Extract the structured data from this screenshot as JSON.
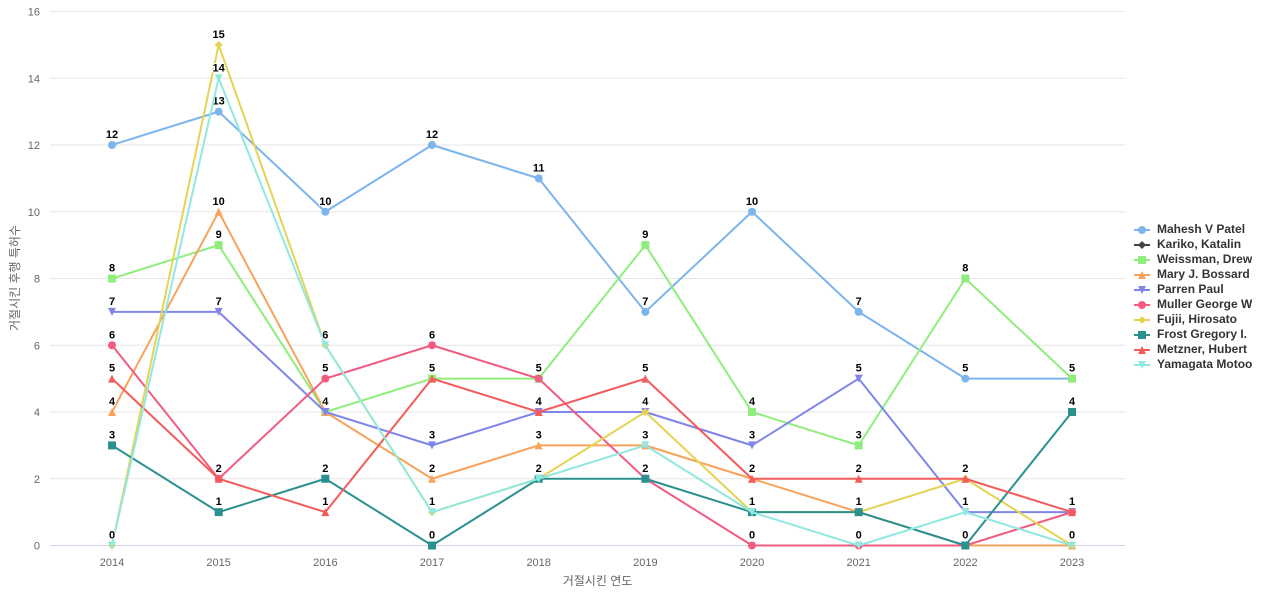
{
  "chart_data": {
    "type": "line",
    "categories": [
      "2014",
      "2015",
      "2016",
      "2017",
      "2018",
      "2019",
      "2020",
      "2021",
      "2022",
      "2023"
    ],
    "xlabel": "거절시킨 연도",
    "ylabel": "거절시킨 후행 특허수",
    "ylim": [
      0,
      16
    ],
    "yticks": [
      0,
      2,
      4,
      6,
      8,
      10,
      12,
      14,
      16
    ],
    "grid": true,
    "legend_position": "right",
    "series": [
      {
        "name": "Mahesh V Patel",
        "color": "#7cb5ec",
        "marker": "circle",
        "values": [
          12,
          13,
          10,
          12,
          11,
          7,
          10,
          7,
          5,
          5
        ]
      },
      {
        "name": "Kariko, Katalin",
        "color": "#434348",
        "marker": "diamond",
        "values": [
          null,
          null,
          null,
          null,
          null,
          null,
          null,
          null,
          null,
          null
        ]
      },
      {
        "name": "Weissman, Drew",
        "color": "#90ed7d",
        "marker": "square",
        "values": [
          8,
          9,
          4,
          5,
          5,
          9,
          4,
          3,
          8,
          5
        ]
      },
      {
        "name": "Mary J. Bossard",
        "color": "#f7a35c",
        "marker": "triangle",
        "values": [
          4,
          10,
          4,
          2,
          3,
          3,
          2,
          1,
          0,
          0
        ]
      },
      {
        "name": "Parren Paul",
        "color": "#8085e9",
        "marker": "triangle-down",
        "values": [
          7,
          7,
          4,
          3,
          4,
          4,
          3,
          5,
          1,
          1
        ]
      },
      {
        "name": "Muller George W",
        "color": "#f15c80",
        "marker": "circle",
        "values": [
          6,
          2,
          5,
          6,
          5,
          2,
          0,
          0,
          0,
          1
        ]
      },
      {
        "name": "Fujii, Hirosato",
        "color": "#e4d354",
        "marker": "diamond",
        "values": [
          0,
          15,
          6,
          1,
          2,
          4,
          1,
          1,
          2,
          0
        ]
      },
      {
        "name": "Frost Gregory I.",
        "color": "#2b908f",
        "marker": "square",
        "values": [
          3,
          1,
          2,
          0,
          2,
          2,
          1,
          1,
          0,
          4
        ]
      },
      {
        "name": "Metzner, Hubert",
        "color": "#f45b5b",
        "marker": "triangle",
        "values": [
          5,
          2,
          1,
          5,
          4,
          5,
          2,
          2,
          2,
          1
        ]
      },
      {
        "name": "Yamagata Motoo",
        "color": "#91e8e1",
        "marker": "triangle-down",
        "values": [
          0,
          14,
          6,
          1,
          2,
          3,
          1,
          0,
          1,
          0
        ]
      }
    ]
  },
  "style": {
    "grid_color": "#e6e6e6",
    "axis_line_color": "#ccd6eb",
    "tick_label_color": "#666666",
    "axis_title_color": "#666666",
    "data_label_color": "#000000",
    "legend_text_color": "#333333"
  }
}
